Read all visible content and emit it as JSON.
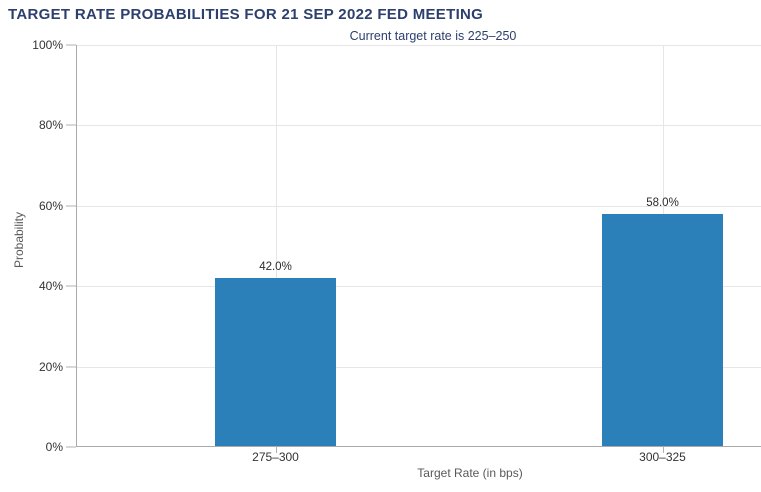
{
  "chart_data": {
    "type": "bar",
    "title": "TARGET RATE PROBABILITIES FOR 21 SEP 2022 FED MEETING",
    "subtitle": "Current target rate is 225–250",
    "xlabel": "Target Rate (in bps)",
    "ylabel": "Probability",
    "categories": [
      "275–300",
      "300–325"
    ],
    "values": [
      42.0,
      58.0
    ],
    "value_labels": [
      "42.0%",
      "58.0%"
    ],
    "ylim": [
      0,
      100
    ],
    "yticks": [
      0,
      20,
      40,
      60,
      80,
      100
    ],
    "ytick_labels": [
      "0%",
      "20%",
      "40%",
      "60%",
      "80%",
      "100%"
    ],
    "grid": true,
    "legend": "none",
    "bar_color": "#2c80ba"
  },
  "colors": {
    "background": "#ffffff",
    "title": "#2c3f6d",
    "subtitle": "#2c3f6d",
    "bar": "#2c80ba",
    "grid": "#e6e6e6",
    "axis_line": "#aaaaaa",
    "tick": "#b0b0b0",
    "tick_label": "#333333",
    "axis_title": "#595959",
    "data_label": "#2b2b2b"
  }
}
